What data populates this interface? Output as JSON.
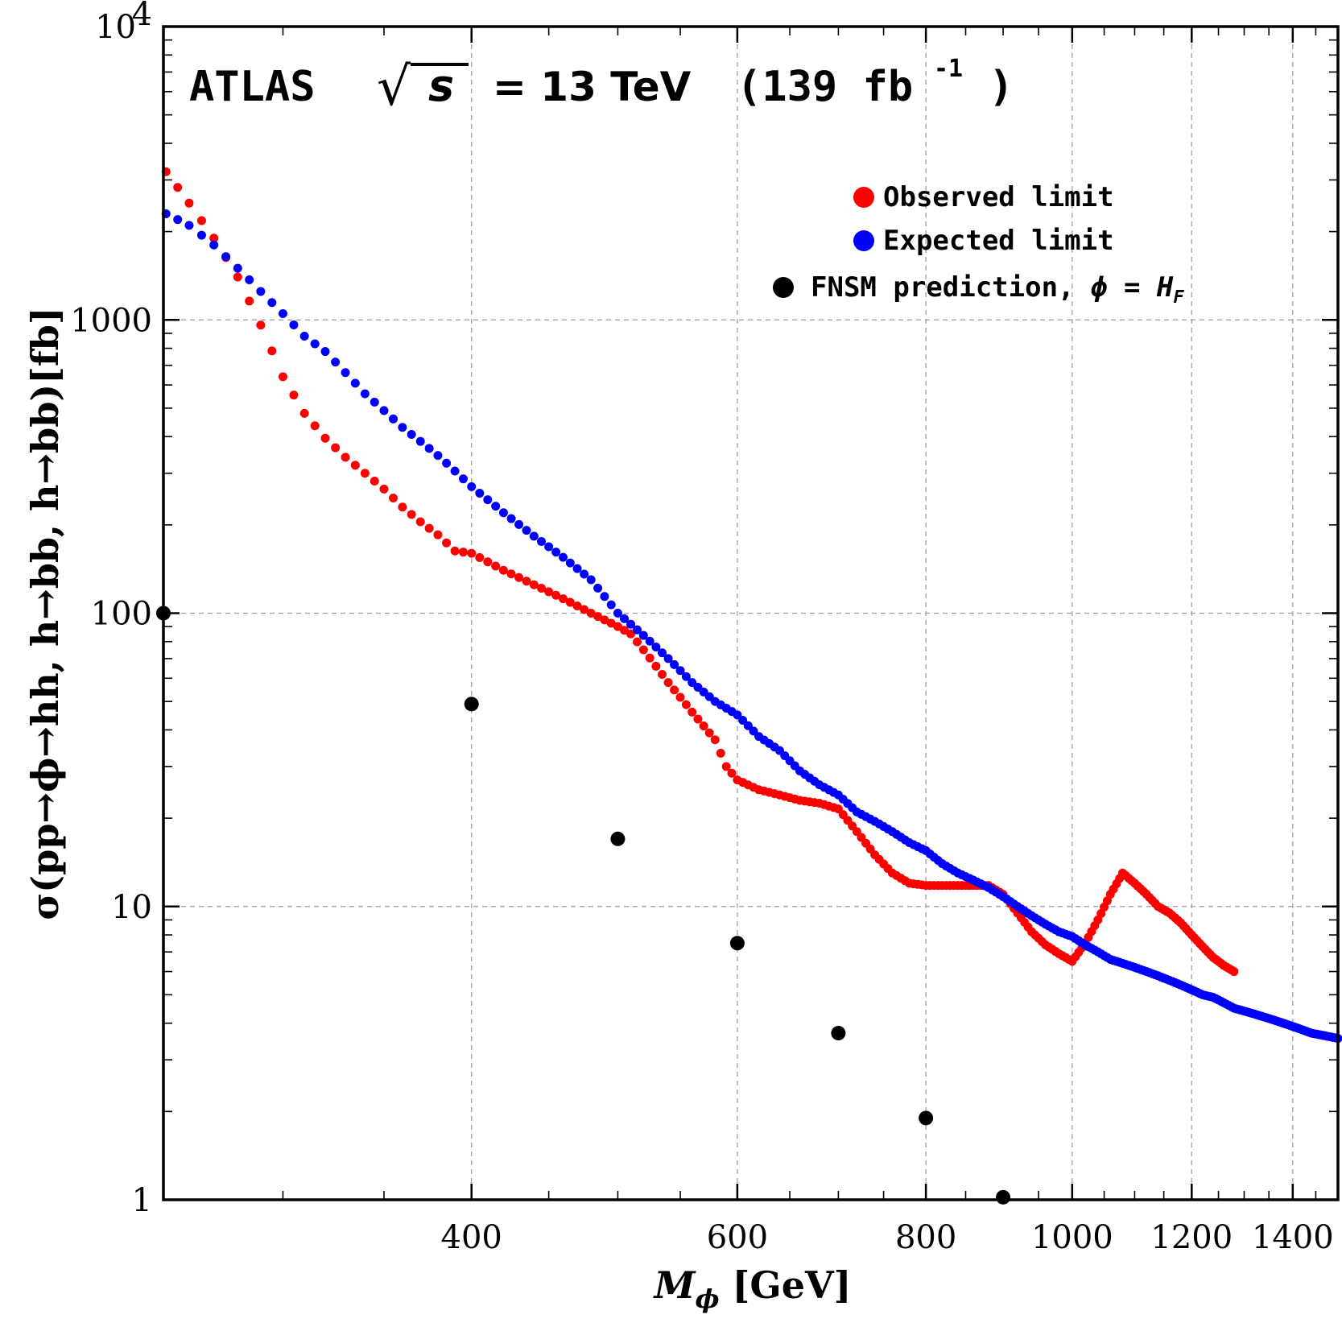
{
  "chart_data": {
    "type": "scatter",
    "title": "ATLAS  √s = 13 TeV  (139 fb⁻¹)",
    "title_parts": {
      "experiment": "ATLAS",
      "sqrt_symbol": "√",
      "sqrt_var": "s",
      "energy": "= 13 TeV",
      "lumi_open": "(139  fb",
      "lumi_exp": "-1",
      "lumi_close": ")"
    },
    "xlabel": {
      "main": "M",
      "sub": "ϕ",
      "unit": " [GeV]"
    },
    "ylabel": "σ(pp→ϕ→hh, h→bb, h→bb)[fb]",
    "xscale": "log",
    "yscale": "log",
    "xlim": [
      250,
      1500
    ],
    "ylim": [
      1,
      10000
    ],
    "x_ticks": [
      {
        "value": 400,
        "label": "400"
      },
      {
        "value": 600,
        "label": "600"
      },
      {
        "value": 800,
        "label": "800"
      },
      {
        "value": 1000,
        "label": "1000"
      },
      {
        "value": 1200,
        "label": "1200"
      },
      {
        "value": 1400,
        "label": "1400"
      }
    ],
    "y_ticks": [
      {
        "value": 1,
        "label": "1",
        "exp": ""
      },
      {
        "value": 10,
        "label": "10",
        "exp": ""
      },
      {
        "value": 100,
        "label": "100",
        "exp": ""
      },
      {
        "value": 1000,
        "label": "1000",
        "exp": ""
      },
      {
        "value": 10000,
        "label": "10",
        "exp": "4"
      }
    ],
    "grid": true,
    "legend_position": "top-right",
    "legend": {
      "observed": "Observed limit",
      "expected": "Expected limit",
      "prediction_main": "FNSM prediction, ",
      "prediction_sym": "ϕ = H",
      "prediction_sub": "F"
    },
    "series": [
      {
        "name": "Observed limit",
        "color": "#ff0000",
        "x": [
          251,
          260,
          270,
          280,
          290,
          300,
          310,
          320,
          330,
          340,
          350,
          360,
          370,
          380,
          390,
          400,
          420,
          440,
          460,
          480,
          500,
          510,
          520,
          540,
          560,
          580,
          590,
          600,
          620,
          640,
          660,
          680,
          700,
          720,
          740,
          760,
          780,
          800,
          820,
          840,
          860,
          880,
          900,
          920,
          940,
          960,
          980,
          1000,
          1020,
          1040,
          1060,
          1080,
          1100,
          1120,
          1140,
          1160,
          1180,
          1200,
          1220,
          1240,
          1260,
          1280
        ],
        "y": [
          3200,
          2500,
          1900,
          1400,
          960,
          640,
          480,
          395,
          340,
          300,
          265,
          230,
          205,
          185,
          163,
          160,
          140,
          125,
          112,
          100,
          90,
          85,
          75,
          58,
          46,
          37,
          30,
          27,
          25,
          24,
          23,
          22.5,
          21.5,
          18,
          15,
          13,
          12,
          11.8,
          11.8,
          11.8,
          11.8,
          11.8,
          11,
          9.5,
          8.2,
          7.4,
          6.9,
          6.5,
          7.5,
          9,
          11,
          13,
          12,
          11,
          10,
          9.5,
          8.8,
          8.0,
          7.3,
          6.7,
          6.3,
          6.0
        ]
      },
      {
        "name": "Expected limit",
        "color": "#0000ff",
        "x": [
          251,
          260,
          270,
          280,
          290,
          300,
          310,
          320,
          340,
          360,
          380,
          400,
          420,
          440,
          460,
          480,
          500,
          520,
          540,
          560,
          580,
          600,
          620,
          640,
          660,
          680,
          700,
          720,
          740,
          760,
          780,
          800,
          820,
          840,
          860,
          880,
          900,
          920,
          940,
          960,
          980,
          1000,
          1020,
          1040,
          1060,
          1080,
          1100,
          1120,
          1140,
          1160,
          1180,
          1200,
          1220,
          1240,
          1260,
          1280,
          1300,
          1320,
          1340,
          1360,
          1380,
          1400,
          1420,
          1440,
          1460,
          1480,
          1500
        ],
        "y": [
          2300,
          2100,
          1800,
          1500,
          1250,
          1050,
          880,
          780,
          560,
          430,
          345,
          270,
          220,
          183,
          155,
          130,
          100,
          84,
          70,
          58,
          50,
          45,
          38,
          34,
          29,
          26,
          24,
          21,
          19.5,
          18,
          16.5,
          15.5,
          14,
          13,
          12.3,
          11.6,
          10.8,
          10,
          9.3,
          8.7,
          8.2,
          7.9,
          7.4,
          7.0,
          6.6,
          6.4,
          6.2,
          6.0,
          5.8,
          5.6,
          5.4,
          5.2,
          5.0,
          4.9,
          4.7,
          4.5,
          4.4,
          4.3,
          4.2,
          4.1,
          4.0,
          3.9,
          3.8,
          3.7,
          3.65,
          3.6,
          3.55
        ]
      },
      {
        "name": "FNSM prediction",
        "color": "#000000",
        "x": [
          250,
          400,
          500,
          600,
          700,
          800,
          900
        ],
        "y": [
          100,
          49,
          17,
          7.5,
          3.7,
          1.9,
          1.02
        ]
      }
    ]
  }
}
